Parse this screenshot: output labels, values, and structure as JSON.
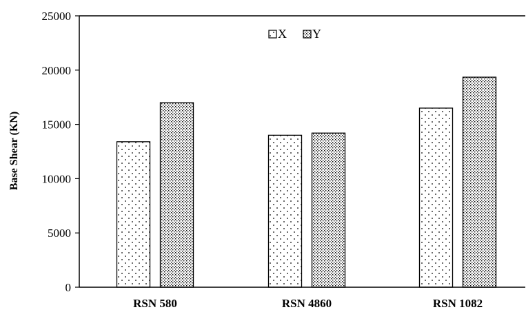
{
  "chart_data": {
    "type": "bar",
    "title": "",
    "xlabel": "",
    "ylabel": "Base Shear (KN)",
    "ylim": [
      0,
      25000
    ],
    "yticks": [
      "0",
      "5000",
      "10000",
      "15000",
      "20000",
      "25000"
    ],
    "categories": [
      "RSN 580",
      "RSN 4860",
      "RSN 1082"
    ],
    "series": [
      {
        "name": "X",
        "values": [
          13400,
          14000,
          16500
        ],
        "pattern": "sparse-dots"
      },
      {
        "name": "Y",
        "values": [
          17000,
          14200,
          19350
        ],
        "pattern": "dense-dots"
      }
    ],
    "grid": false,
    "legend_position": "top-center",
    "colors": {
      "bar_fill": "#ffffff",
      "bar_edge": "#000000",
      "axis": "#000000"
    }
  }
}
